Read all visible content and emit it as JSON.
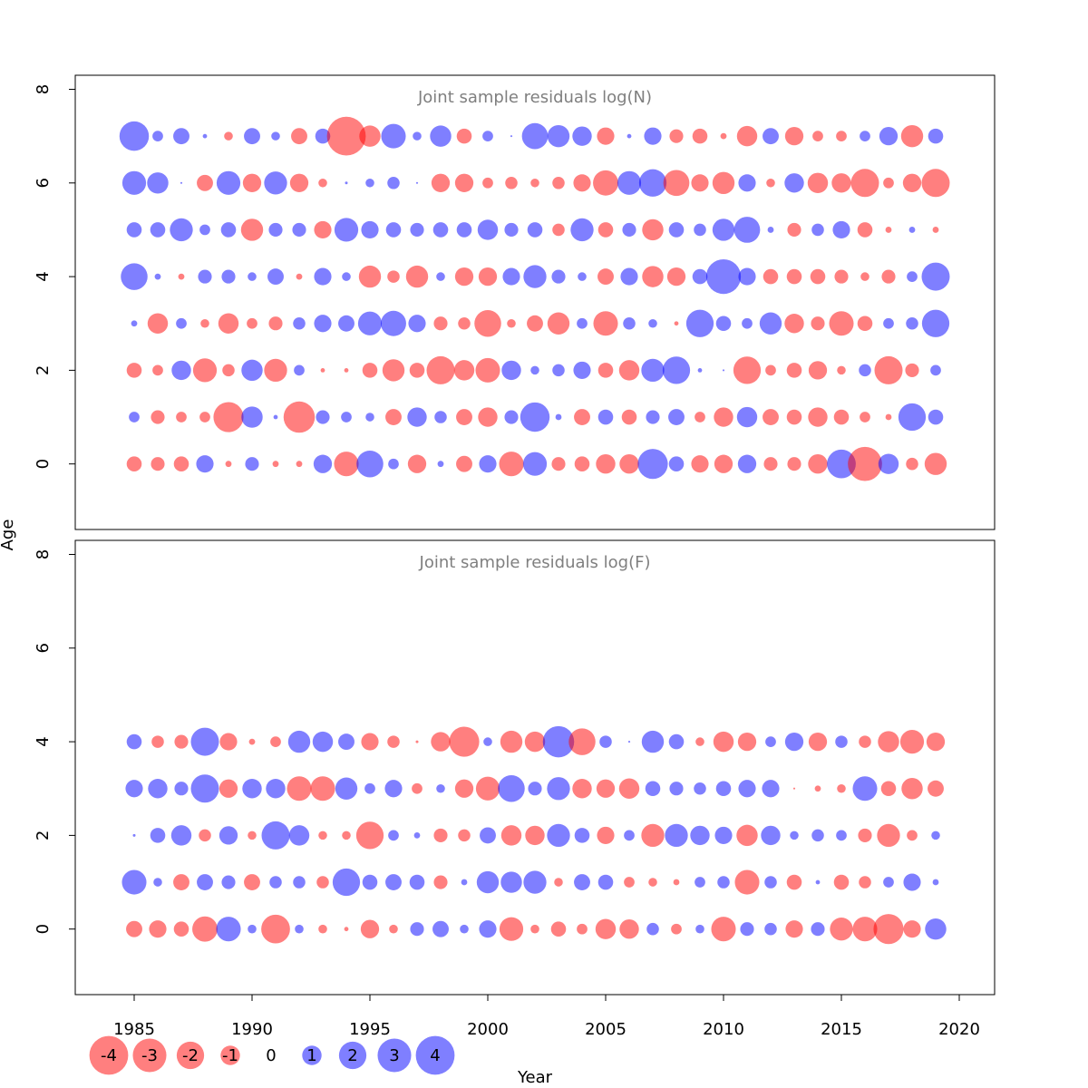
{
  "chart_data": {
    "type": "bubble",
    "xlabel": "Year",
    "ylabel": "Age",
    "xlim": [
      1982.5,
      2021.5
    ],
    "ylim": [
      -1.4,
      8.3
    ],
    "x_ticks": [
      "1985",
      "1990",
      "1995",
      "2000",
      "2005",
      "2010",
      "2015",
      "2020"
    ],
    "y_ticks": [
      "0",
      "2",
      "4",
      "6",
      "8"
    ],
    "colors": {
      "positive": "#0000ff",
      "negative": "#ff0000"
    },
    "opacity": 0.5,
    "size_scale": "radius proportional to sqrt(|residual|)",
    "legend": {
      "position": "bottom-left",
      "values": [
        "-4",
        "-3",
        "-2",
        "-1",
        "0",
        "1",
        "2",
        "3",
        "4"
      ]
    },
    "years": [
      1985,
      1986,
      1987,
      1988,
      1989,
      1990,
      1991,
      1992,
      1993,
      1994,
      1995,
      1996,
      1997,
      1998,
      1999,
      2000,
      2001,
      2002,
      2003,
      2004,
      2005,
      2006,
      2007,
      2008,
      2009,
      2010,
      2011,
      2012,
      2013,
      2014,
      2015,
      2016,
      2017,
      2018,
      2019
    ],
    "panels": [
      {
        "title": "Joint sample residuals log(N)",
        "ages": [
          0,
          1,
          2,
          3,
          4,
          5,
          6,
          7
        ],
        "residuals": [
          [
            -0.6,
            -0.5,
            -0.6,
            0.8,
            -0.1,
            0.5,
            -0.1,
            -0.1,
            0.9,
            -1.6,
            1.9,
            0.3,
            -0.9,
            0.1,
            -0.7,
            0.8,
            -1.6,
            1.5,
            -0.5,
            -0.6,
            -1.0,
            -1.0,
            2.4,
            0.6,
            -0.8,
            -0.9,
            0.9,
            -0.5,
            -0.5,
            -1.0,
            2.2,
            -3.1,
            1.1,
            -0.4,
            -1.3
          ],
          [
            0.3,
            -0.5,
            -0.3,
            -0.3,
            -2.4,
            1.2,
            0.05,
            -2.6,
            0.5,
            0.3,
            0.2,
            -0.7,
            1.0,
            0.4,
            -0.7,
            -1.0,
            0.5,
            2.3,
            0.1,
            -0.7,
            0.6,
            -0.6,
            0.5,
            0.7,
            -0.3,
            -1.0,
            1.1,
            -0.7,
            -0.6,
            -1.0,
            -0.6,
            -0.3,
            -0.1,
            2.0,
            0.6
          ],
          [
            -0.6,
            -0.3,
            1.0,
            -1.5,
            -0.4,
            1.2,
            -1.4,
            0.3,
            -0.05,
            -0.05,
            -0.6,
            -1.3,
            -0.6,
            -2.1,
            -1.1,
            -1.6,
            1.0,
            0.2,
            0.4,
            0.8,
            -0.6,
            -1.1,
            1.4,
            2.0,
            0.05,
            0.01,
            -2.0,
            -0.3,
            -0.6,
            -0.9,
            -0.2,
            0.4,
            -2.1,
            -0.5,
            0.3
          ],
          [
            0.1,
            -1.1,
            0.3,
            -0.2,
            -1.1,
            -0.3,
            -0.5,
            0.4,
            0.8,
            0.7,
            1.5,
            1.7,
            0.8,
            -0.5,
            -0.4,
            -1.9,
            -0.2,
            -0.7,
            -1.3,
            0.3,
            -1.6,
            0.4,
            0.2,
            -0.05,
            2.0,
            0.6,
            0.3,
            1.3,
            -1.0,
            -0.5,
            -1.6,
            -0.6,
            0.3,
            0.4,
            2.0
          ],
          [
            1.9,
            0.1,
            -0.1,
            0.5,
            0.5,
            0.2,
            0.7,
            -0.1,
            0.8,
            0.2,
            -1.3,
            -0.4,
            -1.3,
            0.2,
            -0.9,
            -0.9,
            0.8,
            1.4,
            0.5,
            0.2,
            -0.7,
            0.8,
            -1.2,
            -0.9,
            0.6,
            3.2,
            0.8,
            -0.6,
            -0.6,
            -0.6,
            -0.5,
            -0.2,
            -0.5,
            0.3,
            2.1
          ],
          [
            0.6,
            0.6,
            1.4,
            0.3,
            0.6,
            -1.3,
            0.5,
            0.5,
            -0.8,
            1.5,
            0.8,
            0.6,
            0.5,
            0.6,
            0.6,
            1.1,
            0.5,
            0.6,
            -0.4,
            1.4,
            -0.6,
            0.5,
            -1.2,
            0.6,
            0.4,
            1.3,
            1.8,
            0.1,
            -0.5,
            0.4,
            0.8,
            -0.6,
            -0.1,
            0.1,
            -0.1
          ],
          [
            1.5,
            1.2,
            0.01,
            -0.7,
            1.5,
            -0.9,
            1.4,
            -0.9,
            -0.2,
            0.02,
            0.2,
            0.4,
            0.01,
            -0.9,
            -0.9,
            -0.3,
            -0.4,
            -0.2,
            -0.4,
            -0.8,
            -1.7,
            1.5,
            2.0,
            -1.8,
            -0.8,
            -1.3,
            0.8,
            -0.2,
            1.0,
            -1.1,
            -1.0,
            -2.1,
            -0.3,
            -0.9,
            -2.1
          ],
          [
            2.3,
            0.3,
            0.7,
            0.05,
            -0.2,
            0.7,
            0.2,
            -0.7,
            0.6,
            -4.0,
            -1.2,
            1.6,
            0.2,
            1.2,
            -0.6,
            0.3,
            0.01,
            1.8,
            1.3,
            1.0,
            -0.8,
            0.05,
            0.8,
            -0.5,
            -0.6,
            -0.1,
            -1.1,
            0.7,
            -0.9,
            -0.3,
            -0.3,
            0.3,
            0.9,
            -1.3,
            0.6
          ]
        ]
      },
      {
        "title": "Joint sample residuals log(F)",
        "ages": [
          0,
          1,
          2,
          3,
          4
        ],
        "residuals": [
          [
            -0.7,
            -0.8,
            -0.6,
            -1.7,
            1.6,
            0.2,
            -2.2,
            0.2,
            -0.2,
            -0.05,
            -0.9,
            -0.2,
            0.5,
            0.7,
            0.2,
            0.8,
            -1.5,
            -0.2,
            -0.6,
            -0.3,
            -1.1,
            -1.0,
            0.4,
            -0.3,
            0.2,
            -1.6,
            0.5,
            0.4,
            -0.8,
            0.5,
            -1.4,
            -1.6,
            -2.4,
            -0.8,
            1.2
          ],
          [
            1.6,
            0.2,
            -0.7,
            0.7,
            0.5,
            -0.7,
            0.4,
            0.4,
            -0.4,
            2.0,
            0.6,
            0.7,
            0.6,
            -0.5,
            0.1,
            1.3,
            1.2,
            1.4,
            -0.2,
            0.7,
            0.6,
            -0.3,
            -0.2,
            -0.1,
            0.3,
            0.4,
            -1.6,
            0.4,
            -0.6,
            0.05,
            -0.6,
            -0.4,
            0.3,
            0.8,
            0.1
          ],
          [
            0.02,
            0.6,
            1.1,
            -0.4,
            0.9,
            -0.2,
            2.1,
            1.1,
            -0.2,
            -0.2,
            -2.0,
            0.3,
            0.1,
            -0.5,
            -0.4,
            0.7,
            -1.1,
            -1.0,
            1.4,
            0.6,
            -0.8,
            0.3,
            -1.4,
            1.4,
            1.0,
            0.8,
            -1.2,
            1.0,
            0.2,
            0.4,
            0.3,
            -0.5,
            -1.4,
            -0.3,
            0.2
          ],
          [
            0.8,
            1.0,
            0.5,
            2.1,
            -0.9,
            1.0,
            1.0,
            -1.6,
            -1.6,
            1.3,
            0.3,
            0.8,
            -0.3,
            0.2,
            -0.9,
            -1.5,
            1.9,
            0.5,
            1.4,
            -1.0,
            -0.9,
            -1.1,
            0.6,
            0.5,
            0.4,
            0.6,
            0.8,
            0.8,
            -0.01,
            -0.1,
            -0.2,
            1.6,
            -0.6,
            -1.2,
            -0.7
          ],
          [
            0.6,
            -0.4,
            -0.5,
            2.1,
            -0.8,
            -0.1,
            -0.3,
            1.3,
            1.1,
            0.7,
            -0.8,
            -0.4,
            -0.02,
            -1.0,
            -2.4,
            0.2,
            -1.3,
            -1.1,
            2.6,
            -1.9,
            0.4,
            0.01,
            1.3,
            0.6,
            -0.2,
            -1.1,
            -0.9,
            0.3,
            0.9,
            -0.9,
            0.4,
            -0.4,
            -1.2,
            -1.5,
            -0.9
          ]
        ]
      }
    ]
  }
}
